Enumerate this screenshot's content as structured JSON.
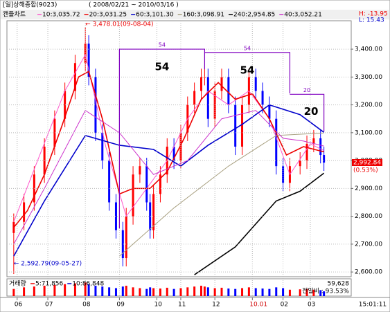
{
  "chart_data": {
    "type": "candlestick",
    "title": "[일]상해종합(9023)",
    "subtitle": "( 2008/02/21 ~ 2010/03/16 )",
    "chart_label": "캔들차트",
    "high_label": "H: -13.95",
    "low_label": "L: 15.43",
    "time_label": "15:01:11",
    "up_color": "#ff0000",
    "down_color": "#0000ff",
    "grid": true,
    "xlim": [
      -1,
      100
    ],
    "ylim": [
      2583,
      3502
    ],
    "xticks": [
      {
        "value": 2,
        "label": "06"
      },
      {
        "value": 11,
        "label": "07"
      },
      {
        "value": 22,
        "label": "08"
      },
      {
        "value": 32,
        "label": "09"
      },
      {
        "value": 43,
        "label": "10"
      },
      {
        "value": 50,
        "label": "11"
      },
      {
        "value": 60,
        "label": "12"
      },
      {
        "value": 71,
        "label": "10.01",
        "color": "#d00000"
      },
      {
        "value": 80,
        "label": "02"
      },
      {
        "value": 88,
        "label": "03"
      }
    ],
    "yticks": [
      {
        "value": 2600,
        "label": "2,600.00"
      },
      {
        "value": 2700,
        "label": "2,700.00"
      },
      {
        "value": 2800,
        "label": "2,800.00"
      },
      {
        "value": 2900,
        "label": "2,900.00"
      },
      {
        "value": 3000,
        "label": "3,000.00"
      },
      {
        "value": 3100,
        "label": "3,100.00"
      },
      {
        "value": 3200,
        "label": "3,200.00"
      },
      {
        "value": 3300,
        "label": "3,300.00"
      },
      {
        "value": 3400,
        "label": "3,400.00"
      }
    ],
    "x": [
      1,
      4,
      7,
      10,
      13,
      16,
      19,
      22,
      23,
      25,
      27,
      29,
      31,
      33,
      34,
      36,
      38,
      40,
      41,
      42,
      44,
      46,
      48,
      50,
      52,
      54,
      56,
      57,
      58,
      60,
      62,
      64,
      66,
      68,
      70,
      72,
      74,
      76,
      78,
      80,
      82,
      85,
      87,
      89,
      91,
      92
    ],
    "open": [
      2740,
      2780,
      2850,
      2950,
      3050,
      3150,
      3250,
      3350,
      3420,
      3300,
      3100,
      3000,
      2850,
      2750,
      2650,
      2800,
      2950,
      2980,
      2850,
      2750,
      2880,
      2950,
      3050,
      3000,
      3100,
      3200,
      3250,
      3300,
      3300,
      3150,
      3250,
      3300,
      3200,
      3050,
      3200,
      3300,
      3250,
      3200,
      3150,
      2980,
      2920,
      2980,
      3000,
      3060,
      3080,
      3020
    ],
    "high": [
      2810,
      2880,
      2980,
      3080,
      3180,
      3280,
      3380,
      3478.01,
      3450,
      3330,
      3130,
      3030,
      2880,
      2780,
      2830,
      2980,
      3010,
      3010,
      2880,
      2910,
      2980,
      3080,
      3080,
      3130,
      3230,
      3280,
      3330,
      3330,
      3330,
      3280,
      3330,
      3330,
      3230,
      3230,
      3330,
      3330,
      3280,
      3230,
      3180,
      3010,
      3010,
      3030,
      3090,
      3110,
      3110,
      3050
    ],
    "low": [
      2592.79,
      2750,
      2820,
      2920,
      3020,
      3120,
      3220,
      3320,
      3270,
      3070,
      2970,
      2820,
      2720,
      2620,
      2620,
      2770,
      2920,
      2820,
      2720,
      2720,
      2850,
      2920,
      2970,
      2970,
      3070,
      3170,
      3220,
      3270,
      3120,
      3120,
      3220,
      3170,
      3020,
      3020,
      3170,
      3220,
      3170,
      3120,
      2950,
      2890,
      2890,
      2950,
      2970,
      3030,
      2990,
      2963
    ],
    "close": [
      2780,
      2850,
      2950,
      3050,
      3150,
      3250,
      3350,
      3420,
      3300,
      3100,
      3000,
      2850,
      2750,
      2650,
      2800,
      2950,
      2980,
      2850,
      2750,
      2880,
      2950,
      3050,
      3000,
      3100,
      3200,
      3250,
      3300,
      3300,
      3150,
      3250,
      3300,
      3200,
      3050,
      3200,
      3300,
      3250,
      3200,
      3150,
      2980,
      2920,
      2980,
      3000,
      3060,
      3080,
      3020,
      2992.84
    ],
    "last_label": "2,992.84",
    "change_label": "(0.53%)",
    "annotations": [
      {
        "text": "← 3,478.01(09-08-04)",
        "x": 22,
        "y": 3478.01
      },
      {
        "text": "← 2,592.79(09-05-27)",
        "x": 1,
        "y": 2592.79
      }
    ],
    "wave_labels": [
      {
        "small": "54",
        "big": "54",
        "x0": 32,
        "x1": 57,
        "top": 3400
      },
      {
        "small": "54",
        "big": "54",
        "x0": 57,
        "x1": 82,
        "top": 3388
      },
      {
        "small": "20",
        "big": "20",
        "x0": 82,
        "x1": 92,
        "top": 3238
      }
    ],
    "series": [
      {
        "name": "10:3,035.72",
        "color": "#ff55cc",
        "x": [
          1,
          8,
          16,
          22,
          28,
          34,
          40,
          46,
          52,
          58,
          64,
          70,
          76,
          82,
          88,
          92
        ],
        "values": [
          2780,
          3000,
          3250,
          3380,
          3050,
          2800,
          2900,
          3000,
          3150,
          3250,
          3200,
          3250,
          3150,
          2950,
          3060,
          3035.72
        ]
      },
      {
        "name": "20:3,031.25",
        "color": "#ee0000",
        "x": [
          1,
          5,
          10,
          15,
          20,
          23,
          27,
          32,
          36,
          41,
          46,
          51,
          56,
          61,
          66,
          71,
          76,
          81,
          86,
          92
        ],
        "values": [
          2760,
          2820,
          2950,
          3120,
          3300,
          3320,
          3150,
          2880,
          2900,
          2900,
          2960,
          3080,
          3220,
          3280,
          3220,
          3240,
          3150,
          3020,
          3050,
          3031.25
        ]
      },
      {
        "name": "60:3,101.30",
        "color": "#0000cc",
        "x": [
          1,
          10,
          22,
          32,
          42,
          50,
          58,
          68,
          76,
          85,
          92
        ],
        "values": [
          2657,
          2855,
          3090,
          3055,
          3040,
          2980,
          3055,
          3130,
          3200,
          3165,
          3101.3
        ]
      },
      {
        "name": "160:3,098.91",
        "color": "#a8a080",
        "x": [
          32,
          48,
          64,
          78,
          92
        ],
        "values": [
          2657,
          2830,
          2980,
          3090,
          3098.91
        ]
      },
      {
        "name": "240:2,954.85",
        "color": "#000000",
        "x": [
          54,
          66,
          78,
          85,
          92
        ],
        "values": [
          2590,
          2690,
          2855,
          2890,
          2954.85
        ]
      },
      {
        "name": "40:3,052.21",
        "color": "#cc33cc",
        "x": [
          1,
          10,
          22,
          32,
          42,
          52,
          62,
          72,
          80,
          86,
          92
        ],
        "values": [
          2700,
          2900,
          3180,
          3100,
          2950,
          3000,
          3150,
          3180,
          3080,
          3070,
          3052.21
        ]
      }
    ],
    "volume": {
      "label": "거래량",
      "ma": [
        {
          "name": "5:71,856",
          "color": "#ee0000"
        },
        {
          "name": "10:86,848",
          "color": "#0000cc"
        }
      ],
      "ylim": [
        0,
        200000
      ],
      "values": [
        90000,
        110000,
        120000,
        130000,
        140000,
        150000,
        160000,
        170000,
        150000,
        130000,
        120000,
        110000,
        100000,
        120000,
        130000,
        110000,
        100000,
        90000,
        110000,
        100000,
        95000,
        105000,
        90000,
        100000,
        110000,
        120000,
        130000,
        120000,
        110000,
        100000,
        105000,
        95000,
        90000,
        100000,
        110000,
        100000,
        95000,
        90000,
        110000,
        100000,
        80000,
        85000,
        90000,
        80000,
        75000,
        59628
      ],
      "last_label": "59,628",
      "ratio_label": "전일비 : 93.53%"
    }
  }
}
